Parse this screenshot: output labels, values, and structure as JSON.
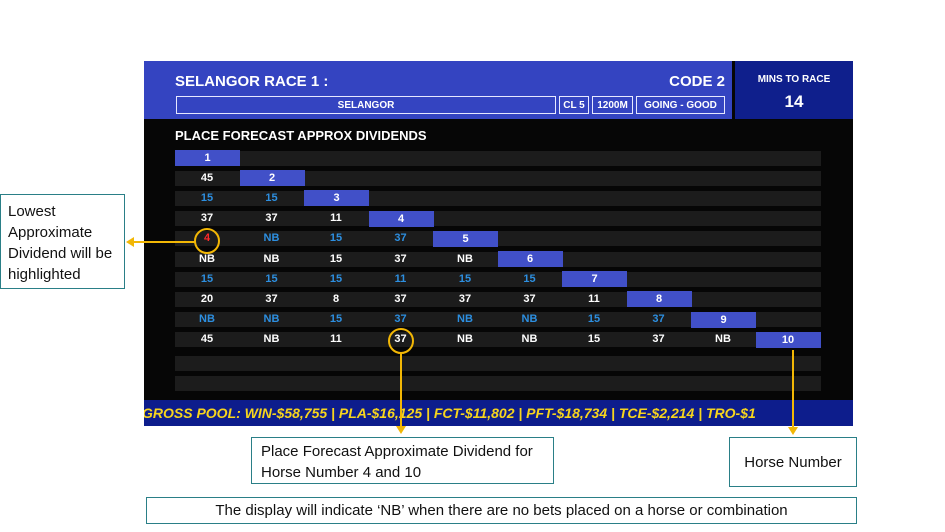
{
  "header": {
    "race_title": "SELANGOR RACE 1 :",
    "code": "CODE 2",
    "venue": "SELANGOR",
    "class": "CL 5",
    "distance": "1200M",
    "going": "GOING - GOOD"
  },
  "mins_to_race": {
    "label": "MINS TO RACE",
    "value": "14"
  },
  "section_title": "PLACE FORECAST APPROX DIVIDENDS",
  "grid": {
    "rows": [
      {
        "horse": "1",
        "values": []
      },
      {
        "horse": "2",
        "values": [
          "45"
        ]
      },
      {
        "horse": "3",
        "values": [
          "15",
          "15"
        ]
      },
      {
        "horse": "4",
        "values": [
          "37",
          "37",
          "11"
        ]
      },
      {
        "horse": "5",
        "values": [
          "4",
          "NB",
          "15",
          "37"
        ]
      },
      {
        "horse": "6",
        "values": [
          "NB",
          "NB",
          "15",
          "37",
          "NB"
        ]
      },
      {
        "horse": "7",
        "values": [
          "15",
          "15",
          "15",
          "11",
          "15",
          "15"
        ]
      },
      {
        "horse": "8",
        "values": [
          "20",
          "37",
          "8",
          "37",
          "37",
          "37",
          "11"
        ]
      },
      {
        "horse": "9",
        "values": [
          "NB",
          "NB",
          "15",
          "37",
          "NB",
          "NB",
          "15",
          "37"
        ]
      },
      {
        "horse": "10",
        "values": [
          "45",
          "NB",
          "11",
          "37",
          "NB",
          "NB",
          "15",
          "37",
          "NB"
        ]
      }
    ],
    "highlighted_lowest": {
      "row": 4,
      "col": 0
    }
  },
  "ticker": "GROSS POOL: WIN-$58,755  |  PLA-$16,125  |  FCT-$11,802  |  PFT-$18,734  |  TCE-$2,214  |  TRO-$1",
  "annotations": {
    "lowest": "Lowest Approximate Dividend will be highlighted",
    "place_forecast": "Place Forecast Approximate Dividend for Horse Number 4 and 10",
    "horse_number": "Horse Number",
    "nb_note": "The display will indicate ‘NB’ when there are no bets placed on a horse or combination"
  },
  "colors": {
    "header_blue": "#3444c1",
    "diagonal_blue": "#4150c8",
    "dark_blue": "#0f1f8c",
    "ticker_yellow": "#f7d51d",
    "value_white": "#ffffff",
    "value_blue": "#2d8fe0",
    "lowest_red": "#ff2a2a",
    "callout_yellow": "#f2b705",
    "callout_border": "#2a7f87"
  }
}
